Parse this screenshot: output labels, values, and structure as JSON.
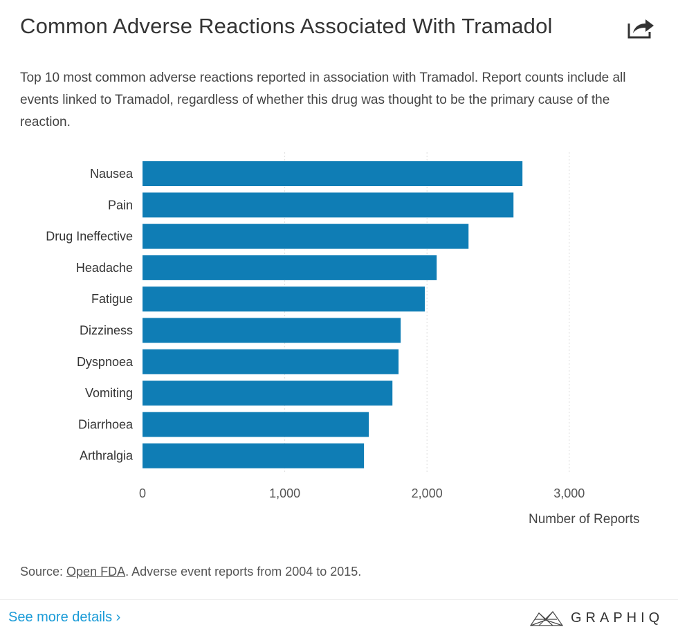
{
  "header": {
    "title": "Common Adverse Reactions Associated With Tramadol",
    "share_icon": "share-icon",
    "subtitle": "Top 10 most common adverse reactions reported in association with Tramadol. Report counts include all events linked to Tramadol, regardless of whether this drug was thought to be the primary cause of the reaction."
  },
  "chart_data": {
    "type": "bar",
    "orientation": "horizontal",
    "categories": [
      "Nausea",
      "Pain",
      "Drug Ineffective",
      "Headache",
      "Fatigue",
      "Dizziness",
      "Dyspnoea",
      "Vomiting",
      "Diarrhoea",
      "Arthralgia"
    ],
    "values": [
      2671,
      2608,
      2292,
      2068,
      1985,
      1815,
      1800,
      1757,
      1591,
      1557
    ],
    "xlabel": "Number of Reports",
    "xlim": [
      0,
      3000
    ],
    "xticks": [
      0,
      1000,
      2000,
      3000
    ],
    "xtick_labels": [
      "0",
      "1,000",
      "2,000",
      "3,000"
    ],
    "grid": "vertical dotted",
    "bar_color": "#0f7db5"
  },
  "footer": {
    "source_prefix": "Source: ",
    "source_link": "Open FDA",
    "source_suffix": ". Adverse event reports from 2004 to 2015.",
    "more_link": "See more details ›",
    "logo_text": "GRAPHIQ"
  }
}
